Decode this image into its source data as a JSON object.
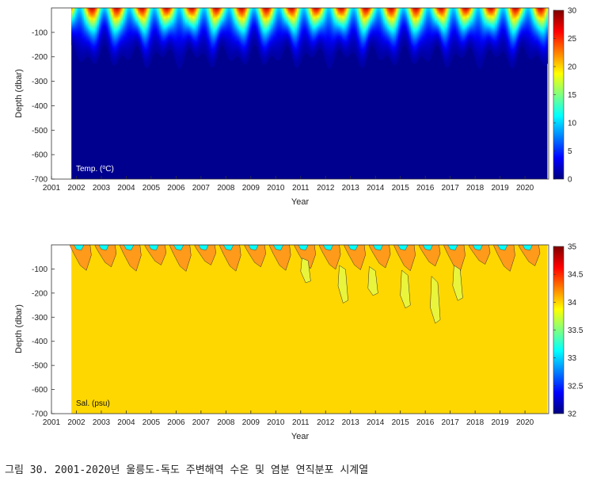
{
  "caption": "그림 30. 2001-2020년 울릉도-독도 주변해역 수온 및 염분 연직분포 시계열",
  "colors": {
    "jet": [
      "#00007f",
      "#0000ff",
      "#0080ff",
      "#00ffff",
      "#80ff80",
      "#ffff00",
      "#ff8000",
      "#ff0000",
      "#7f0000"
    ],
    "deep_temp": "#00008f",
    "sal_base": "#ffd700",
    "sal_high": "#ff9a1a",
    "sal_low": "#e8f53c"
  },
  "chart_data": [
    {
      "type": "heatmap",
      "label": "Temp. (°C)",
      "label_main": "Temp. (",
      "label_sup": "o",
      "label_tail": "C)",
      "xlabel": "Year",
      "ylabel": "Depth (dbar)",
      "xlim": [
        2001,
        2020.95
      ],
      "data_xlim": [
        2001.8,
        2020.9
      ],
      "ylim": [
        -700,
        0
      ],
      "x_ticks": [
        "2001",
        "2002",
        "2003",
        "2004",
        "2005",
        "2006",
        "2007",
        "2008",
        "2009",
        "2010",
        "2011",
        "2012",
        "2013",
        "2014",
        "2015",
        "2016",
        "2017",
        "2018",
        "2019",
        "2020"
      ],
      "y_ticks": [
        "-100",
        "-200",
        "-300",
        "-400",
        "-500",
        "-600",
        "-700"
      ],
      "colorbar": {
        "min": 0,
        "max": 30,
        "ticks": [
          "0",
          "5",
          "10",
          "15",
          "20",
          "25",
          "30"
        ]
      },
      "surface_range": [
        10,
        28
      ],
      "deep_value": 1,
      "thermocline_depth": [
        150,
        250
      ]
    },
    {
      "type": "heatmap",
      "label": "Sal. (psu)",
      "xlabel": "Year",
      "ylabel": "Depth (dbar)",
      "xlim": [
        2001,
        2020.95
      ],
      "data_xlim": [
        2001.8,
        2020.9
      ],
      "ylim": [
        -700,
        0
      ],
      "x_ticks": [
        "2001",
        "2002",
        "2003",
        "2004",
        "2005",
        "2006",
        "2007",
        "2008",
        "2009",
        "2010",
        "2011",
        "2012",
        "2013",
        "2014",
        "2015",
        "2016",
        "2017",
        "2018",
        "2019",
        "2020"
      ],
      "y_ticks": [
        "-100",
        "-200",
        "-300",
        "-400",
        "-500",
        "-600",
        "-700"
      ],
      "colorbar": {
        "min": 32,
        "max": 35,
        "ticks": [
          "32",
          "32.5",
          "33",
          "33.5",
          "34",
          "34.5",
          "35"
        ]
      },
      "deep_value": 34.05,
      "subsurface_max": 34.4,
      "surface_min": 32.3
    }
  ]
}
